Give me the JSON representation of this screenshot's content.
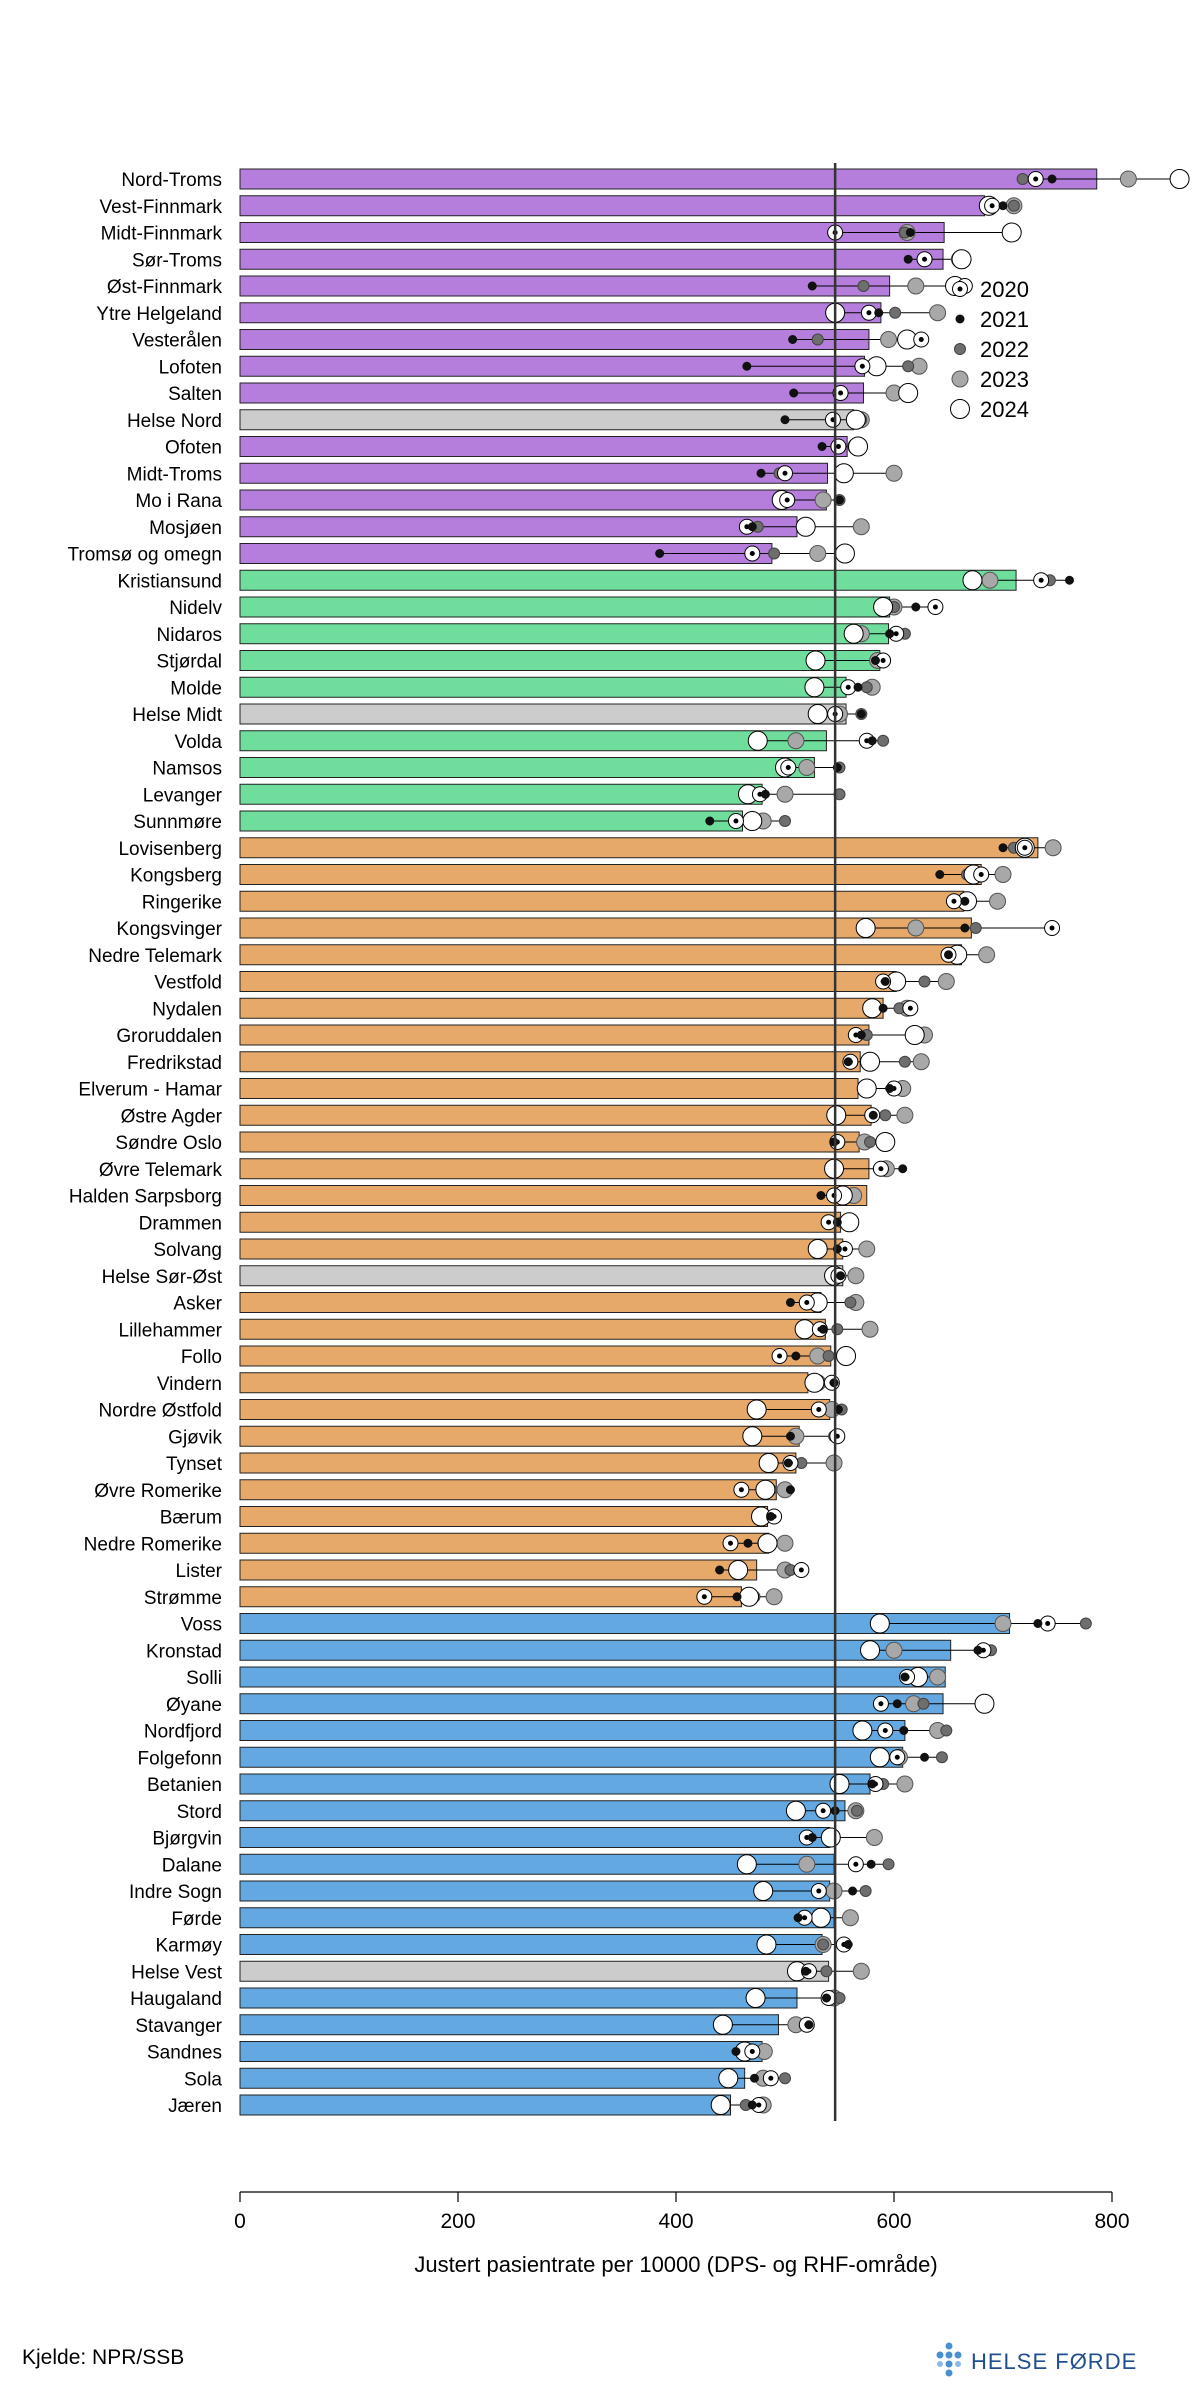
{
  "chart_data": {
    "type": "bar",
    "xlabel": "Justert pasientrate per 10000 (DPS- og RHF-område)",
    "xlim": [
      0,
      860
    ],
    "xticks": [
      0,
      200,
      400,
      600,
      800
    ],
    "reference_line": 546,
    "grid": false,
    "legend_position": "top-right",
    "legend": [
      {
        "label": "2020",
        "marker": "open-circle-with-dot"
      },
      {
        "label": "2021",
        "marker": "small-black-dot"
      },
      {
        "label": "2022",
        "marker": "dark-gray-dot"
      },
      {
        "label": "2023",
        "marker": "light-gray-circle"
      },
      {
        "label": "2024",
        "marker": "open-circle"
      }
    ],
    "colors": {
      "Nord": "#b57ddc",
      "Midt": "#6fdd9c",
      "Sør-Øst": "#e6a96a",
      "Vest": "#63a8e0",
      "RHF": "#cccccc",
      "reference": "#333333"
    },
    "categories": [
      "Nord-Troms",
      "Vest-Finnmark",
      "Midt-Finnmark",
      "Sør-Troms",
      "Øst-Finnmark",
      "Ytre Helgeland",
      "Vesterålen",
      "Lofoten",
      "Salten",
      "Helse Nord",
      "Ofoten",
      "Midt-Troms",
      "Mo i Rana",
      "Mosjøen",
      "Tromsø og omegn",
      "Kristiansund",
      "Nidelv",
      "Nidaros",
      "Stjørdal",
      "Molde",
      "Helse Midt",
      "Volda",
      "Namsos",
      "Levanger",
      "Sunnmøre",
      "Lovisenberg",
      "Kongsberg",
      "Ringerike",
      "Kongsvinger",
      "Nedre Telemark",
      "Vestfold",
      "Nydalen",
      "Groruddalen",
      "Fredrikstad",
      "Elverum - Hamar",
      "Østre Agder",
      "Søndre Oslo",
      "Øvre Telemark",
      "Halden Sarpsborg",
      "Drammen",
      "Solvang",
      "Helse Sør-Øst",
      "Asker",
      "Lillehammer",
      "Follo",
      "Vindern",
      "Nordre Østfold",
      "Gjøvik",
      "Tynset",
      "Øvre Romerike",
      "Bærum",
      "Nedre Romerike",
      "Lister",
      "Strømme",
      "Voss",
      "Kronstad",
      "Solli",
      "Øyane",
      "Nordfjord",
      "Folgefonn",
      "Betanien",
      "Stord",
      "Bjørgvin",
      "Dalane",
      "Indre Sogn",
      "Førde",
      "Karmøy",
      "Helse Vest",
      "Haugaland",
      "Stavanger",
      "Sandnes",
      "Sola",
      "Jæren"
    ],
    "groups": [
      "Nord",
      "Nord",
      "Nord",
      "Nord",
      "Nord",
      "Nord",
      "Nord",
      "Nord",
      "Nord",
      "RHF",
      "Nord",
      "Nord",
      "Nord",
      "Nord",
      "Nord",
      "Midt",
      "Midt",
      "Midt",
      "Midt",
      "Midt",
      "RHF",
      "Midt",
      "Midt",
      "Midt",
      "Midt",
      "Sør-Øst",
      "Sør-Øst",
      "Sør-Øst",
      "Sør-Øst",
      "Sør-Øst",
      "Sør-Øst",
      "Sør-Øst",
      "Sør-Øst",
      "Sør-Øst",
      "Sør-Øst",
      "Sør-Øst",
      "Sør-Øst",
      "Sør-Øst",
      "Sør-Øst",
      "Sør-Øst",
      "Sør-Øst",
      "RHF",
      "Sør-Øst",
      "Sør-Øst",
      "Sør-Øst",
      "Sør-Øst",
      "Sør-Øst",
      "Sør-Øst",
      "Sør-Øst",
      "Sør-Øst",
      "Sør-Øst",
      "Sør-Øst",
      "Sør-Øst",
      "Sør-Øst",
      "Vest",
      "Vest",
      "Vest",
      "Vest",
      "Vest",
      "Vest",
      "Vest",
      "Vest",
      "Vest",
      "Vest",
      "Vest",
      "Vest",
      "Vest",
      "RHF",
      "Vest",
      "Vest",
      "Vest",
      "Vest",
      "Vest"
    ],
    "values": [
      786,
      683,
      646,
      645,
      596,
      588,
      577,
      573,
      572,
      563,
      557,
      539,
      538,
      511,
      488,
      712,
      596,
      595,
      587,
      556,
      556,
      538,
      527,
      479,
      461,
      732,
      680,
      664,
      671,
      662,
      602,
      590,
      577,
      569,
      567,
      579,
      568,
      577,
      575,
      551,
      553,
      553,
      533,
      537,
      542,
      521,
      541,
      513,
      510,
      492,
      484,
      485,
      474,
      460,
      706,
      652,
      647,
      645,
      610,
      608,
      578,
      555,
      541,
      545,
      541,
      545,
      534,
      540,
      511,
      494,
      479,
      463,
      450
    ],
    "series": [
      {
        "name": "2020",
        "values": [
          730,
          690,
          546,
          628,
          665,
          577,
          625,
          571,
          551,
          544,
          549,
          500,
          502,
          465,
          470,
          735,
          638,
          602,
          590,
          558,
          546,
          575,
          503,
          477,
          455,
          720,
          680,
          655,
          745,
          650,
          590,
          615,
          565,
          560,
          600,
          580,
          548,
          588,
          545,
          540,
          555,
          549,
          520,
          532,
          495,
          543,
          531,
          548,
          505,
          460,
          490,
          450,
          515,
          426,
          741,
          682,
          612,
          588,
          592,
          603,
          583,
          535,
          520,
          565,
          531,
          518,
          554,
          522,
          540,
          520,
          470,
          487,
          476
        ]
      },
      {
        "name": "2021",
        "values": [
          745,
          700,
          615,
          613,
          525,
          586,
          507,
          465,
          508,
          500,
          534,
          478,
          550,
          470,
          385,
          761,
          620,
          596,
          583,
          567,
          570,
          580,
          548,
          482,
          431,
          700,
          642,
          665,
          665,
          650,
          592,
          590,
          570,
          558,
          596,
          581,
          545,
          608,
          533,
          548,
          548,
          551,
          505,
          535,
          510,
          545,
          549,
          505,
          503,
          505,
          487,
          466,
          440,
          456,
          732,
          677,
          610,
          603,
          609,
          628,
          580,
          546,
          525,
          579,
          562,
          512,
          558,
          519,
          538,
          522,
          455,
          472,
          470
        ]
      },
      {
        "name": "2022",
        "values": [
          718,
          710,
          610,
          630,
          572,
          601,
          530,
          613,
          549,
          570,
          547,
          495,
          550,
          475,
          490,
          743,
          600,
          610,
          588,
          575,
          570,
          590,
          550,
          550,
          500,
          710,
          667,
          665,
          675,
          660,
          628,
          605,
          575,
          610,
          578,
          592,
          578,
          586,
          550,
          552,
          553,
          550,
          560,
          548,
          540,
          541,
          552,
          545,
          515,
          487,
          488,
          480,
          505,
          472,
          776,
          689,
          612,
          627,
          648,
          644,
          590,
          566,
          545,
          595,
          574,
          520,
          535,
          538,
          550,
          520,
          470,
          500,
          464
        ]
      },
      {
        "name": "2023",
        "values": [
          815,
          710,
          612,
          660,
          620,
          640,
          595,
          623,
          600,
          570,
          565,
          600,
          535,
          570,
          530,
          688,
          600,
          570,
          585,
          580,
          550,
          510,
          520,
          500,
          480,
          746,
          700,
          695,
          620,
          685,
          648,
          612,
          628,
          625,
          608,
          610,
          573,
          593,
          563,
          558,
          575,
          565,
          565,
          578,
          530,
          530,
          543,
          510,
          545,
          500,
          480,
          500,
          500,
          490,
          700,
          600,
          640,
          618,
          640,
          605,
          610,
          565,
          582,
          520,
          545,
          560,
          535,
          570,
          545,
          510,
          481,
          480,
          480
        ]
      },
      {
        "name": "2024",
        "values": [
          862,
          687,
          708,
          662,
          656,
          546,
          612,
          584,
          613,
          565,
          567,
          554,
          497,
          519,
          555,
          672,
          590,
          563,
          528,
          527,
          530,
          475,
          500,
          466,
          470,
          720,
          673,
          667,
          574,
          658,
          602,
          580,
          619,
          578,
          575,
          547,
          592,
          545,
          553,
          559,
          530,
          545,
          530,
          518,
          556,
          527,
          474,
          470,
          485,
          482,
          478,
          484,
          457,
          467,
          587,
          578,
          622,
          683,
          571,
          587,
          550,
          510,
          542,
          465,
          480,
          533,
          483,
          511,
          473,
          443,
          463,
          448,
          441
        ]
      }
    ]
  },
  "source_note": "Kjelde: NPR/SSB",
  "logo_text": "HELSE FØRDE"
}
